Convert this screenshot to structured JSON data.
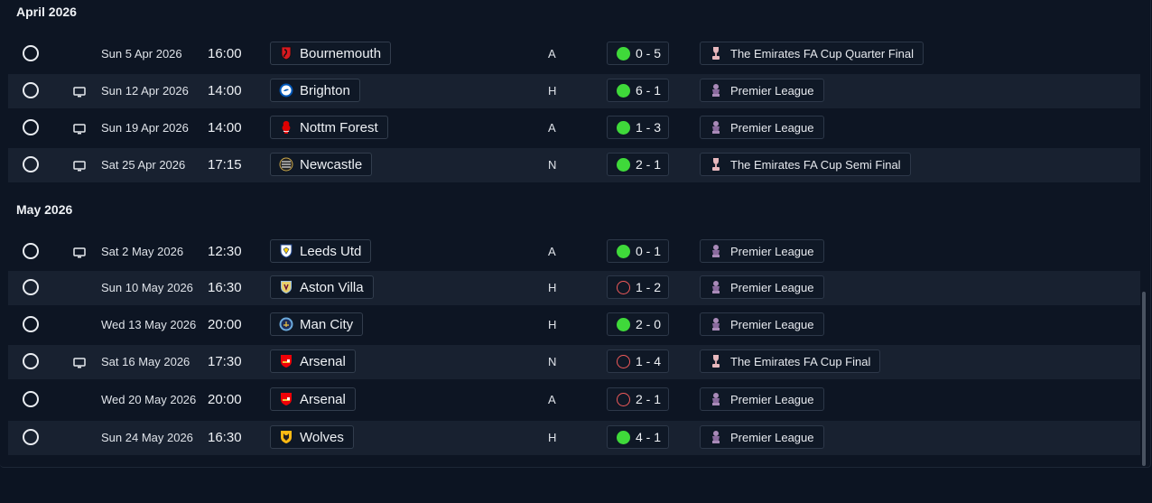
{
  "groups": [
    {
      "month": "April 2026",
      "rows": [
        {
          "tv": false,
          "date": "Sun 5 Apr 2026",
          "time": "16:00",
          "team": "Bournemouth",
          "crest": "bournemouth-crest",
          "venue": "A",
          "outcome": "win",
          "score": "0 - 5",
          "competition": "The Emirates FA Cup Quarter Final",
          "comp_icon": "fa-cup-trophy-icon"
        },
        {
          "tv": true,
          "date": "Sun 12 Apr 2026",
          "time": "14:00",
          "team": "Brighton",
          "crest": "brighton-crest",
          "venue": "H",
          "outcome": "win",
          "score": "6 - 1",
          "competition": "Premier League",
          "comp_icon": "premier-league-icon"
        },
        {
          "tv": true,
          "date": "Sun 19 Apr 2026",
          "time": "14:00",
          "team": "Nottm Forest",
          "crest": "nottm-forest-crest",
          "venue": "A",
          "outcome": "win",
          "score": "1 - 3",
          "competition": "Premier League",
          "comp_icon": "premier-league-icon"
        },
        {
          "tv": true,
          "date": "Sat 25 Apr 2026",
          "time": "17:15",
          "team": "Newcastle",
          "crest": "newcastle-crest",
          "venue": "N",
          "outcome": "win",
          "score": "2 - 1",
          "competition": "The Emirates FA Cup Semi Final",
          "comp_icon": "fa-cup-trophy-icon"
        }
      ]
    },
    {
      "month": "May 2026",
      "rows": [
        {
          "tv": true,
          "date": "Sat 2 May 2026",
          "time": "12:30",
          "team": "Leeds Utd",
          "crest": "leeds-crest",
          "venue": "A",
          "outcome": "win",
          "score": "0 - 1",
          "competition": "Premier League",
          "comp_icon": "premier-league-icon"
        },
        {
          "tv": false,
          "date": "Sun 10 May 2026",
          "time": "16:30",
          "team": "Aston Villa",
          "crest": "aston-villa-crest",
          "venue": "H",
          "outcome": "loss",
          "score": "1 - 2",
          "competition": "Premier League",
          "comp_icon": "premier-league-icon"
        },
        {
          "tv": false,
          "date": "Wed 13 May 2026",
          "time": "20:00",
          "team": "Man City",
          "crest": "man-city-crest",
          "venue": "H",
          "outcome": "win",
          "score": "2 - 0",
          "competition": "Premier League",
          "comp_icon": "premier-league-icon"
        },
        {
          "tv": true,
          "date": "Sat 16 May 2026",
          "time": "17:30",
          "team": "Arsenal",
          "crest": "arsenal-crest",
          "venue": "N",
          "outcome": "loss",
          "score": "1 - 4",
          "competition": "The Emirates FA Cup Final",
          "comp_icon": "fa-cup-trophy-icon"
        },
        {
          "tv": false,
          "date": "Wed 20 May 2026",
          "time": "20:00",
          "team": "Arsenal",
          "crest": "arsenal-crest",
          "venue": "A",
          "outcome": "loss",
          "score": "2 - 1",
          "competition": "Premier League",
          "comp_icon": "premier-league-icon"
        },
        {
          "tv": false,
          "date": "Sun 24 May 2026",
          "time": "16:30",
          "team": "Wolves",
          "crest": "wolves-crest",
          "venue": "H",
          "outcome": "win",
          "score": "4 - 1",
          "competition": "Premier League",
          "comp_icon": "premier-league-icon"
        }
      ]
    }
  ],
  "colors": {
    "background": "#0c1422",
    "row_alt": "#182130",
    "win": "#3fd93a",
    "loss": "#ef5a5a"
  }
}
